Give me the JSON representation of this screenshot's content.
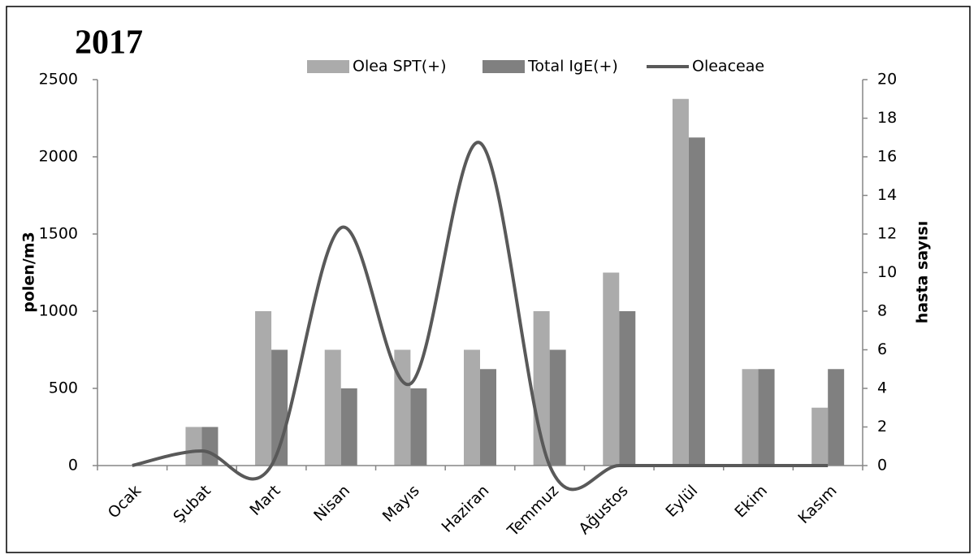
{
  "chart_data": {
    "type": "bar-line",
    "title": "2017",
    "y_label": "polen/m3",
    "y2_label": "hasta sayısı",
    "categories": [
      "Ocak",
      "Şubat",
      "Mart",
      "Nisan",
      "Mayıs",
      "Haziran",
      "Temmuz",
      "Ağustos",
      "Eylül",
      "Ekim",
      "Kasım"
    ],
    "series": [
      {
        "name": "Olea SPT(+)",
        "type": "bar",
        "axis": "y2",
        "color": "#ababab",
        "values": [
          0,
          2,
          8,
          6,
          6,
          6,
          8,
          10,
          19,
          5,
          3
        ]
      },
      {
        "name": "Total IgE(+)",
        "type": "bar",
        "axis": "y2",
        "color": "#808080",
        "values": [
          0,
          2,
          6,
          4,
          4,
          5,
          6,
          8,
          17,
          5,
          5
        ]
      },
      {
        "name": "Oleaceae",
        "type": "line",
        "color": "#595959",
        "values": [
          0,
          95,
          0,
          1540,
          530,
          2090,
          0,
          0,
          0,
          0,
          0
        ]
      }
    ],
    "ylim": [
      0,
      2500
    ],
    "yticks": [
      0,
      500,
      1000,
      1500,
      2000,
      2500
    ],
    "y2lim": [
      0,
      20
    ],
    "y2ticks": [
      0,
      2,
      4,
      6,
      8,
      10,
      12,
      14,
      16,
      18,
      20
    ]
  }
}
